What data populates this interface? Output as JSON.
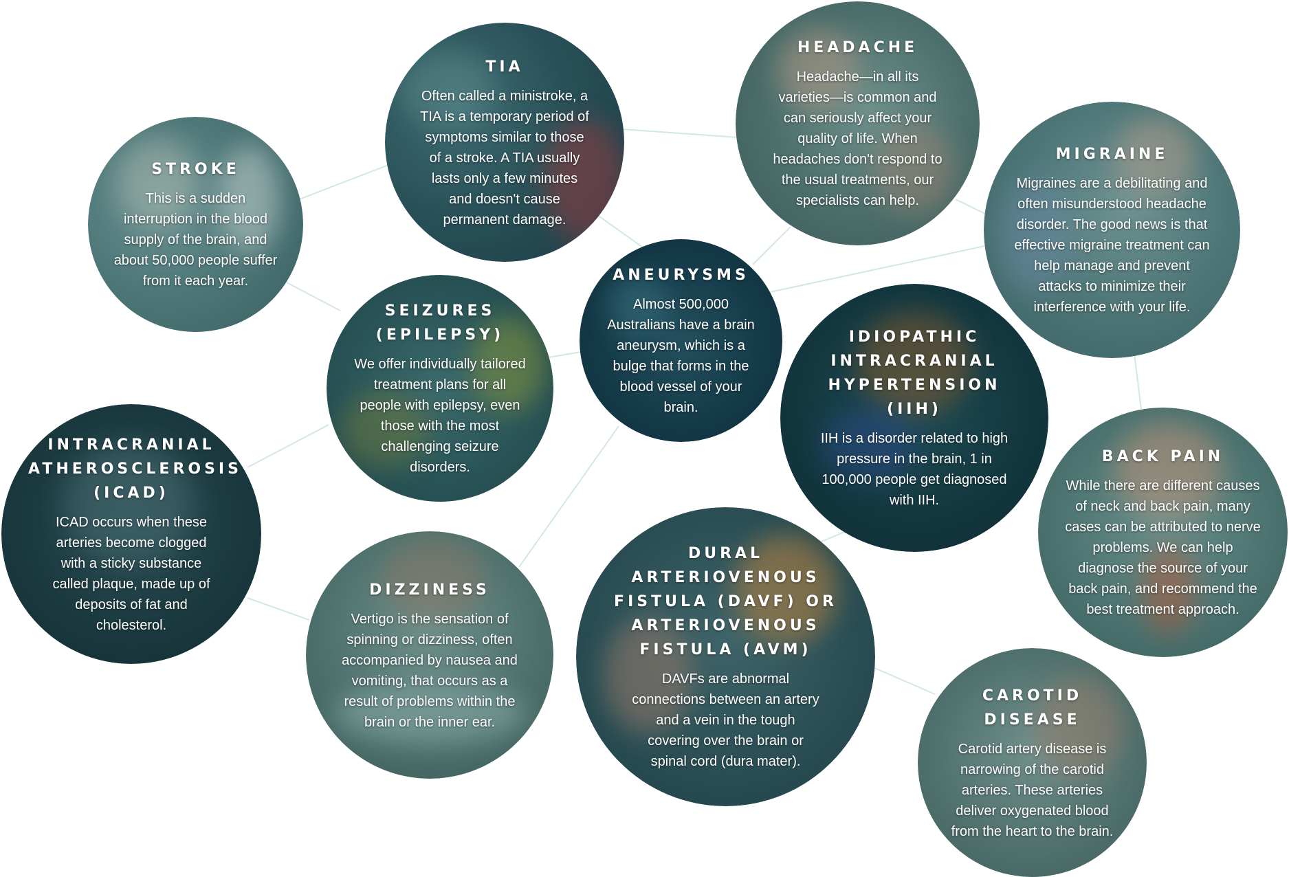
{
  "colors": {
    "connector": "#d3e8e4",
    "text": "#ffffff"
  },
  "nodes": {
    "stroke": {
      "title": "STROKE",
      "desc": "This is a sudden interruption in the blood supply of the brain, and about 50,000 people suffer from it each year."
    },
    "tia": {
      "title": "TIA",
      "desc": "Often called a ministroke, a TIA is a temporary period of symptoms similar to those of a stroke. A TIA usually lasts only a few minutes and doesn't cause permanent damage."
    },
    "headache": {
      "title": "HEADACHE",
      "desc": "Headache—in all its varieties—is common and can seriously affect your quality of life. When headaches don't respond to the usual treatments, our specialists can help."
    },
    "migraine": {
      "title": "MIGRAINE",
      "desc": "Migraines are a debilitating and often misunderstood headache disorder. The good news is that effective migraine treatment can help manage and prevent attacks to minimize their interference with your life."
    },
    "aneurysms": {
      "title": "ANEURYSMS",
      "desc": "Almost 500,000 Australians have a brain aneurysm, which is a bulge that forms in the blood vessel of your brain."
    },
    "seizures": {
      "title": "SEIZURES (EPILEPSY)",
      "desc": "We offer individually tailored treatment plans for all people with epilepsy, even those with the most challenging seizure disorders."
    },
    "iih": {
      "title": "IDIOPATHIC INTRACRANIAL HYPERTENSION (IIH)",
      "desc": "IIH is a disorder related to high pressure in the brain, 1 in 100,000 people get diagnosed with IIH."
    },
    "icad": {
      "title": "INTRACRANIAL ATHEROSCLEROSIS (ICAD)",
      "desc": "ICAD occurs when these arteries become clogged with a sticky substance called plaque, made up of deposits of fat and cholesterol."
    },
    "backpain": {
      "title": "BACK PAIN",
      "desc": "While there are different causes of neck and back pain, many cases can be attributed to nerve problems. We can help diagnose the source of your back pain, and recommend the best treatment approach."
    },
    "dizziness": {
      "title": "DIZZINESS",
      "desc": "Vertigo is the sensation of spinning or dizziness, often accompanied by nausea and vomiting, that occurs as a result of problems within the brain or the inner ear."
    },
    "davf": {
      "title": "DURAL ARTERIOVENOUS FISTULA (DAVF) OR ARTERIOVENOUS FISTULA (AVM)",
      "desc": "DAVFs are abnormal connections between an artery and a vein in the tough covering over the brain or spinal cord (dura mater)."
    },
    "carotid": {
      "title": "CAROTID DISEASE",
      "desc": "Carotid artery disease is narrowing of the carotid arteries. These arteries deliver oxygenated blood from the heart to the brain."
    }
  }
}
